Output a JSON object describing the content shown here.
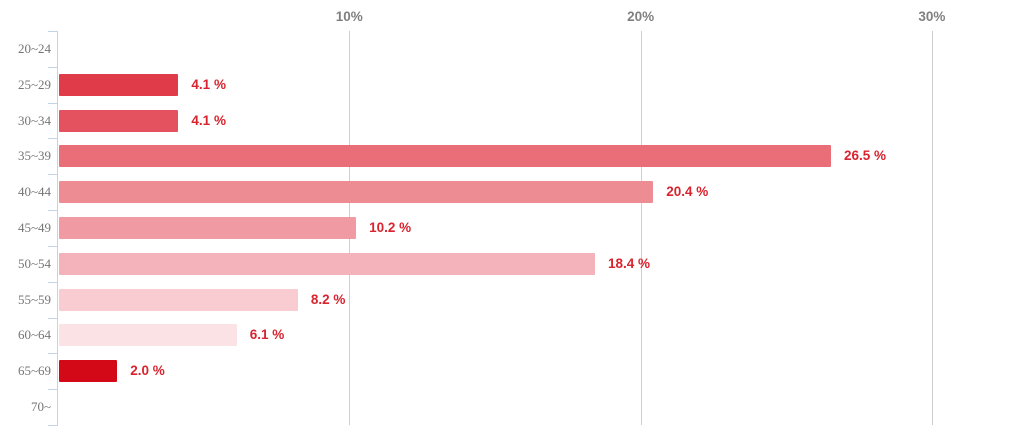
{
  "chart_data": {
    "type": "bar",
    "orientation": "horizontal",
    "title": "",
    "xlabel": "",
    "ylabel": "",
    "categories": [
      "20〜24",
      "25〜29",
      "30〜34",
      "35〜39",
      "40〜44",
      "45〜49",
      "50〜54",
      "55〜59",
      "60〜64",
      "65〜69",
      "70〜"
    ],
    "values": [
      0,
      4.1,
      4.1,
      26.5,
      20.4,
      10.2,
      18.4,
      8.2,
      6.1,
      2.0,
      0
    ],
    "value_labels": [
      "",
      "4.1 %",
      "4.1 %",
      "26.5 %",
      "20.4 %",
      "10.2 %",
      "18.4 %",
      "8.2 %",
      "6.1 %",
      "2.0 %",
      ""
    ],
    "bar_colors": [
      null,
      "#e03b48",
      "#e4515f",
      "#e96e78",
      "#ee8c94",
      "#f09ba3",
      "#f4b3ba",
      "#f8ccd1",
      "#fbe2e5",
      "#d30917",
      null
    ],
    "x_axis": {
      "tick_labels": [
        "10%",
        "20%",
        "30%"
      ],
      "tick_values": [
        10,
        20,
        30
      ],
      "min": 0,
      "max": 33.2
    },
    "grid": true,
    "legend": false,
    "colors": {
      "value_label": "#d9232e",
      "axis_tick_label": "#808080",
      "gridline": "#cfcfcf",
      "y_axis_line": "#c3d4e7",
      "category_label": "#757575",
      "background": "#ffffff"
    }
  }
}
